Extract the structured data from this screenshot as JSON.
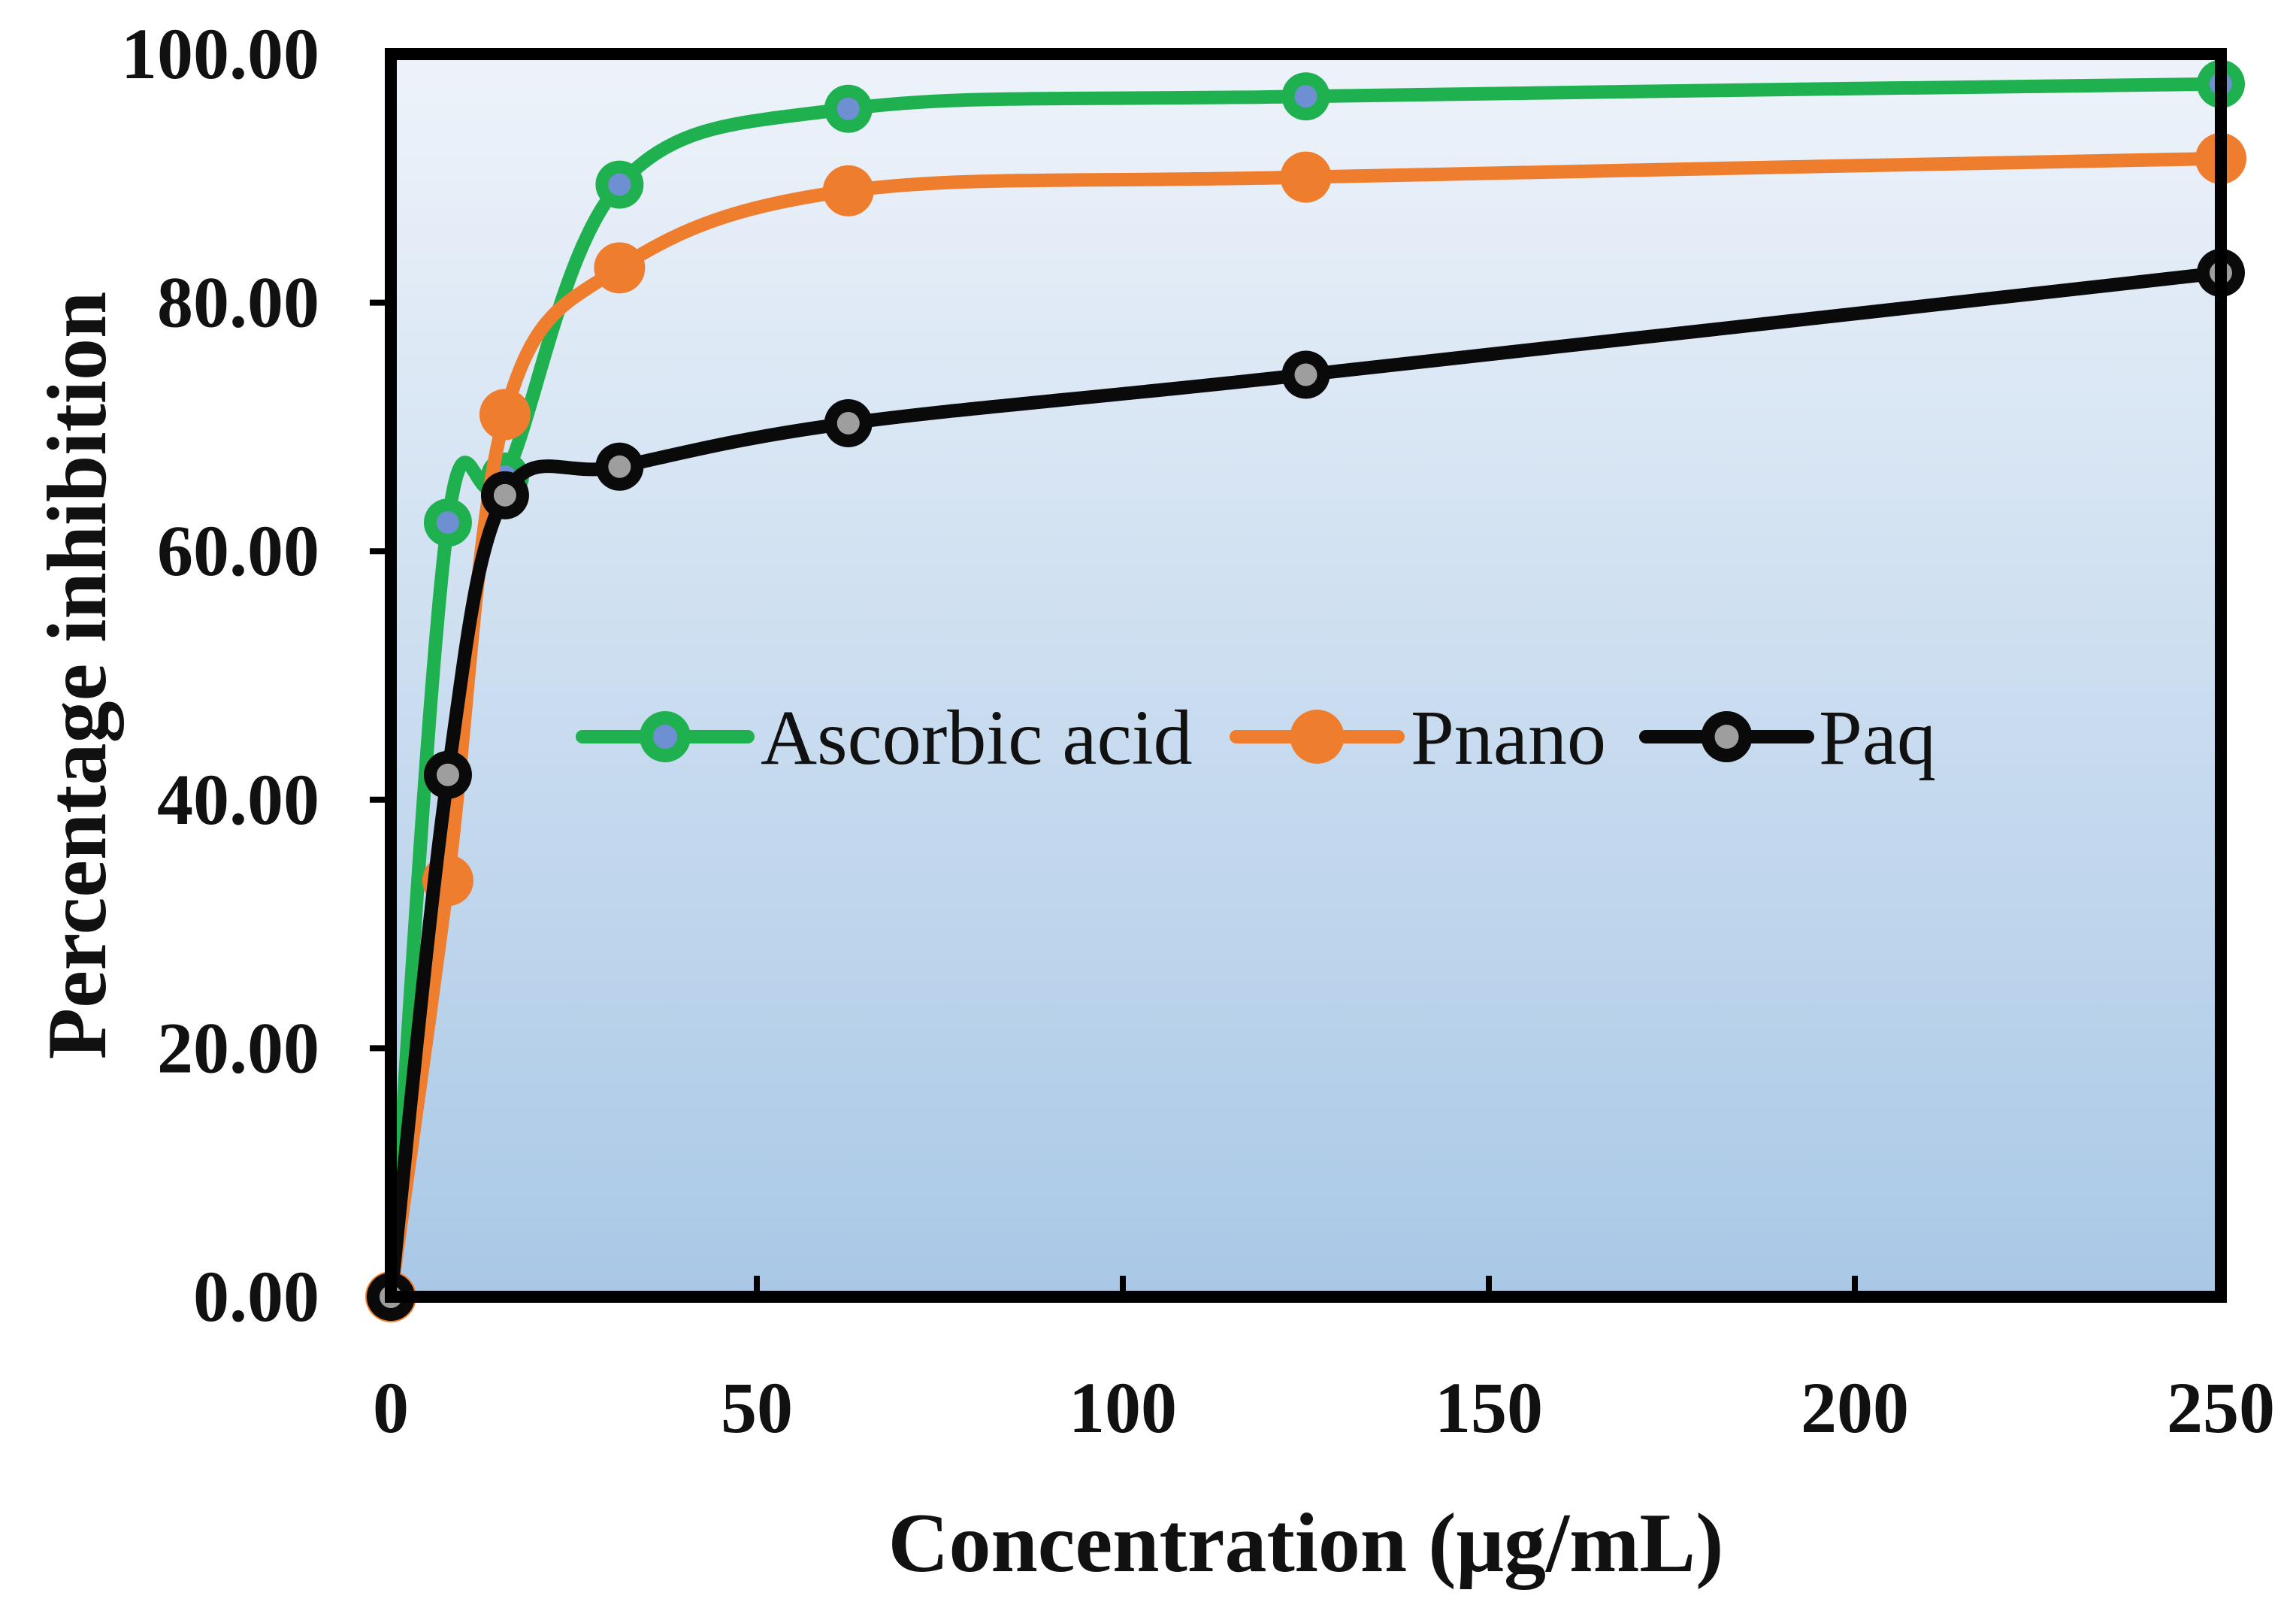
{
  "chart_data": {
    "type": "line",
    "title": "",
    "xlabel": "Concentration (μg/mL)",
    "ylabel": "Percentage inhibition",
    "xlim": [
      0,
      250
    ],
    "ylim": [
      0,
      100
    ],
    "xticks": [
      0,
      50,
      100,
      150,
      200,
      250
    ],
    "yticks": [
      0,
      20,
      40,
      60,
      80,
      100
    ],
    "xtick_labels": [
      "0",
      "50",
      "100",
      "150",
      "200",
      "250"
    ],
    "ytick_labels": [
      "0.00",
      "20.00",
      "40.00",
      "60.00",
      "80.00",
      "100.00"
    ],
    "grid": false,
    "legend_position": "center",
    "background": {
      "top": "#eef3fa",
      "bottom": "#a9c8e6"
    },
    "x": [
      0,
      7.8,
      15.6,
      31.25,
      62.5,
      125,
      250
    ],
    "series": [
      {
        "name": "Ascorbic acid",
        "color": "#1fb14f",
        "marker_fill": "#6f8fd3",
        "smooth": true,
        "values": [
          0,
          62.3,
          66.0,
          89.5,
          95.6,
          96.6,
          97.6
        ]
      },
      {
        "name": "Pnano",
        "color": "#ef7d2e",
        "marker_fill": "#ef7d2e",
        "smooth": true,
        "values": [
          0,
          33.5,
          71.0,
          82.8,
          89.0,
          90.1,
          91.6
        ]
      },
      {
        "name": "Paq",
        "color": "#0a0a0a",
        "marker_fill": "#9e9e9e",
        "smooth": true,
        "values": [
          0,
          42.0,
          64.5,
          66.8,
          70.3,
          74.2,
          82.4
        ]
      }
    ]
  }
}
